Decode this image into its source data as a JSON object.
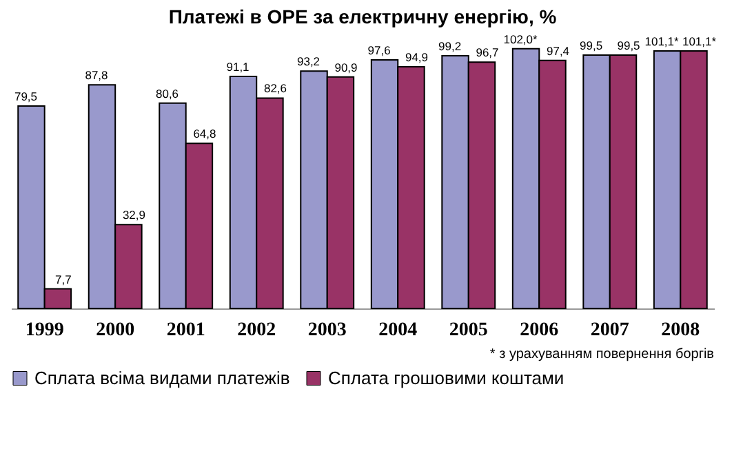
{
  "chart_data": {
    "type": "bar",
    "title": "Платежі в ОРЕ за електричну енергію, %",
    "categories": [
      "1999",
      "2000",
      "2001",
      "2002",
      "2003",
      "2004",
      "2005",
      "2006",
      "2007",
      "2008"
    ],
    "series": [
      {
        "name": "Сплата всіма видами платежів",
        "color": "#9999cc",
        "values": [
          79.5,
          87.8,
          80.6,
          91.1,
          93.2,
          97.6,
          99.2,
          102.0,
          99.5,
          101.1
        ],
        "value_labels": [
          "79,5",
          "87,8",
          "80,6",
          "91,1",
          "93,2",
          "97,6",
          "99,2",
          "102,0*",
          "99,5",
          "101,1*"
        ]
      },
      {
        "name": "Сплата  грошовими коштами",
        "color": "#993366",
        "values": [
          7.7,
          32.9,
          64.8,
          82.6,
          90.9,
          94.9,
          96.7,
          97.4,
          99.5,
          101.1
        ],
        "value_labels": [
          "7,7",
          "32,9",
          "64,8",
          "82,6",
          "90,9",
          "94,9",
          "96,7",
          "97,4",
          "99,5",
          "101,1*"
        ]
      }
    ],
    "annotations": [
      "* з урахуванням повернення боргів"
    ],
    "legend": "bottom",
    "grid": false
  }
}
